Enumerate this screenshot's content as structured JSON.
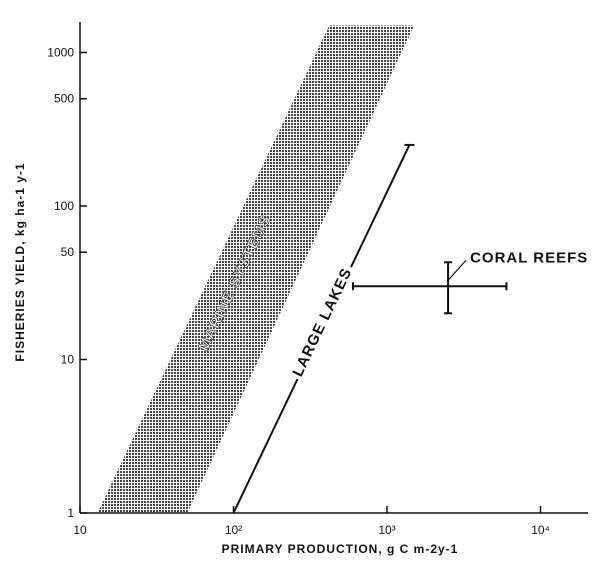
{
  "chart_data": {
    "type": "scatter",
    "title": "",
    "xlabel": "PRIMARY PRODUCTION, g C m-2y-1",
    "ylabel": "FISHERIES YIELD, kg ha-1 y-1",
    "x_scale": "log",
    "y_scale": "log",
    "xlim": [
      10,
      20000
    ],
    "ylim": [
      1,
      1500
    ],
    "x_ticks": [
      {
        "value": 10,
        "label": "10"
      },
      {
        "value": 100,
        "label": "10²"
      },
      {
        "value": 1000,
        "label": "10³"
      },
      {
        "value": 10000,
        "label": "10⁴"
      }
    ],
    "y_ticks": [
      {
        "value": 1,
        "label": "1"
      },
      {
        "value": 10,
        "label": "10"
      },
      {
        "value": 50,
        "label": "50"
      },
      {
        "value": 100,
        "label": "100"
      },
      {
        "value": 500,
        "label": "500"
      },
      {
        "value": 1000,
        "label": "1000"
      }
    ],
    "series": [
      {
        "name": "MARINE SYSTEMS",
        "kind": "band",
        "color": "#555555",
        "lower": [
          {
            "x": 50,
            "y": 1
          },
          {
            "x": 1500,
            "y": 1500
          }
        ],
        "upper": [
          {
            "x": 13,
            "y": 1
          },
          {
            "x": 420,
            "y": 1500
          }
        ]
      },
      {
        "name": "LARGE LAKES",
        "kind": "line",
        "color": "#111111",
        "points": [
          {
            "x": 100,
            "y": 1
          },
          {
            "x": 1400,
            "y": 250
          }
        ]
      },
      {
        "name": "CORAL REEFS",
        "kind": "errorbar",
        "color": "#111111",
        "point": {
          "x": 2500,
          "y": 30
        },
        "x_range": [
          600,
          6000
        ],
        "y_range": [
          20,
          43
        ]
      }
    ],
    "grid": false,
    "legend": "none"
  }
}
